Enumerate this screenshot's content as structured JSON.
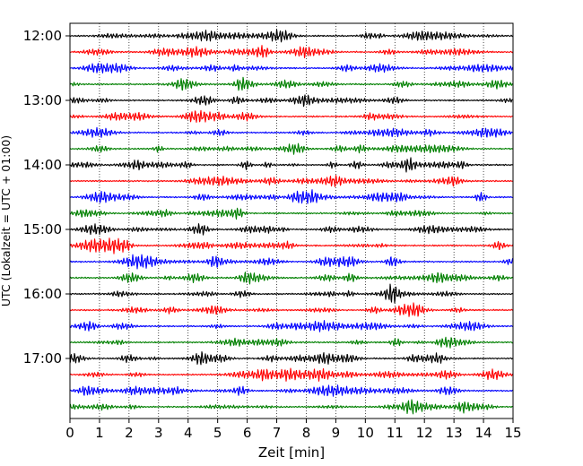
{
  "chart_data": {
    "type": "line",
    "subtype": "helicorder",
    "xlabel": "Zeit  [min]",
    "ylabel": "UTC (Lokalzeit = UTC + 01:00)",
    "xlim": [
      0,
      15
    ],
    "x_ticks": [
      "0",
      "1",
      "2",
      "3",
      "4",
      "5",
      "6",
      "7",
      "8",
      "9",
      "10",
      "11",
      "12",
      "13",
      "14",
      "15"
    ],
    "y_tick_labels": [
      "12:00",
      "13:00",
      "14:00",
      "15:00",
      "16:00",
      "17:00"
    ],
    "trace_interval_min": 15,
    "trace_count": 24,
    "first_trace": "12:00",
    "last_trace": "17:45",
    "trace_colors": [
      "#000000",
      "#ff0000",
      "#0000ff",
      "#008000"
    ],
    "grid": "vertical dotted lines at each minute"
  }
}
